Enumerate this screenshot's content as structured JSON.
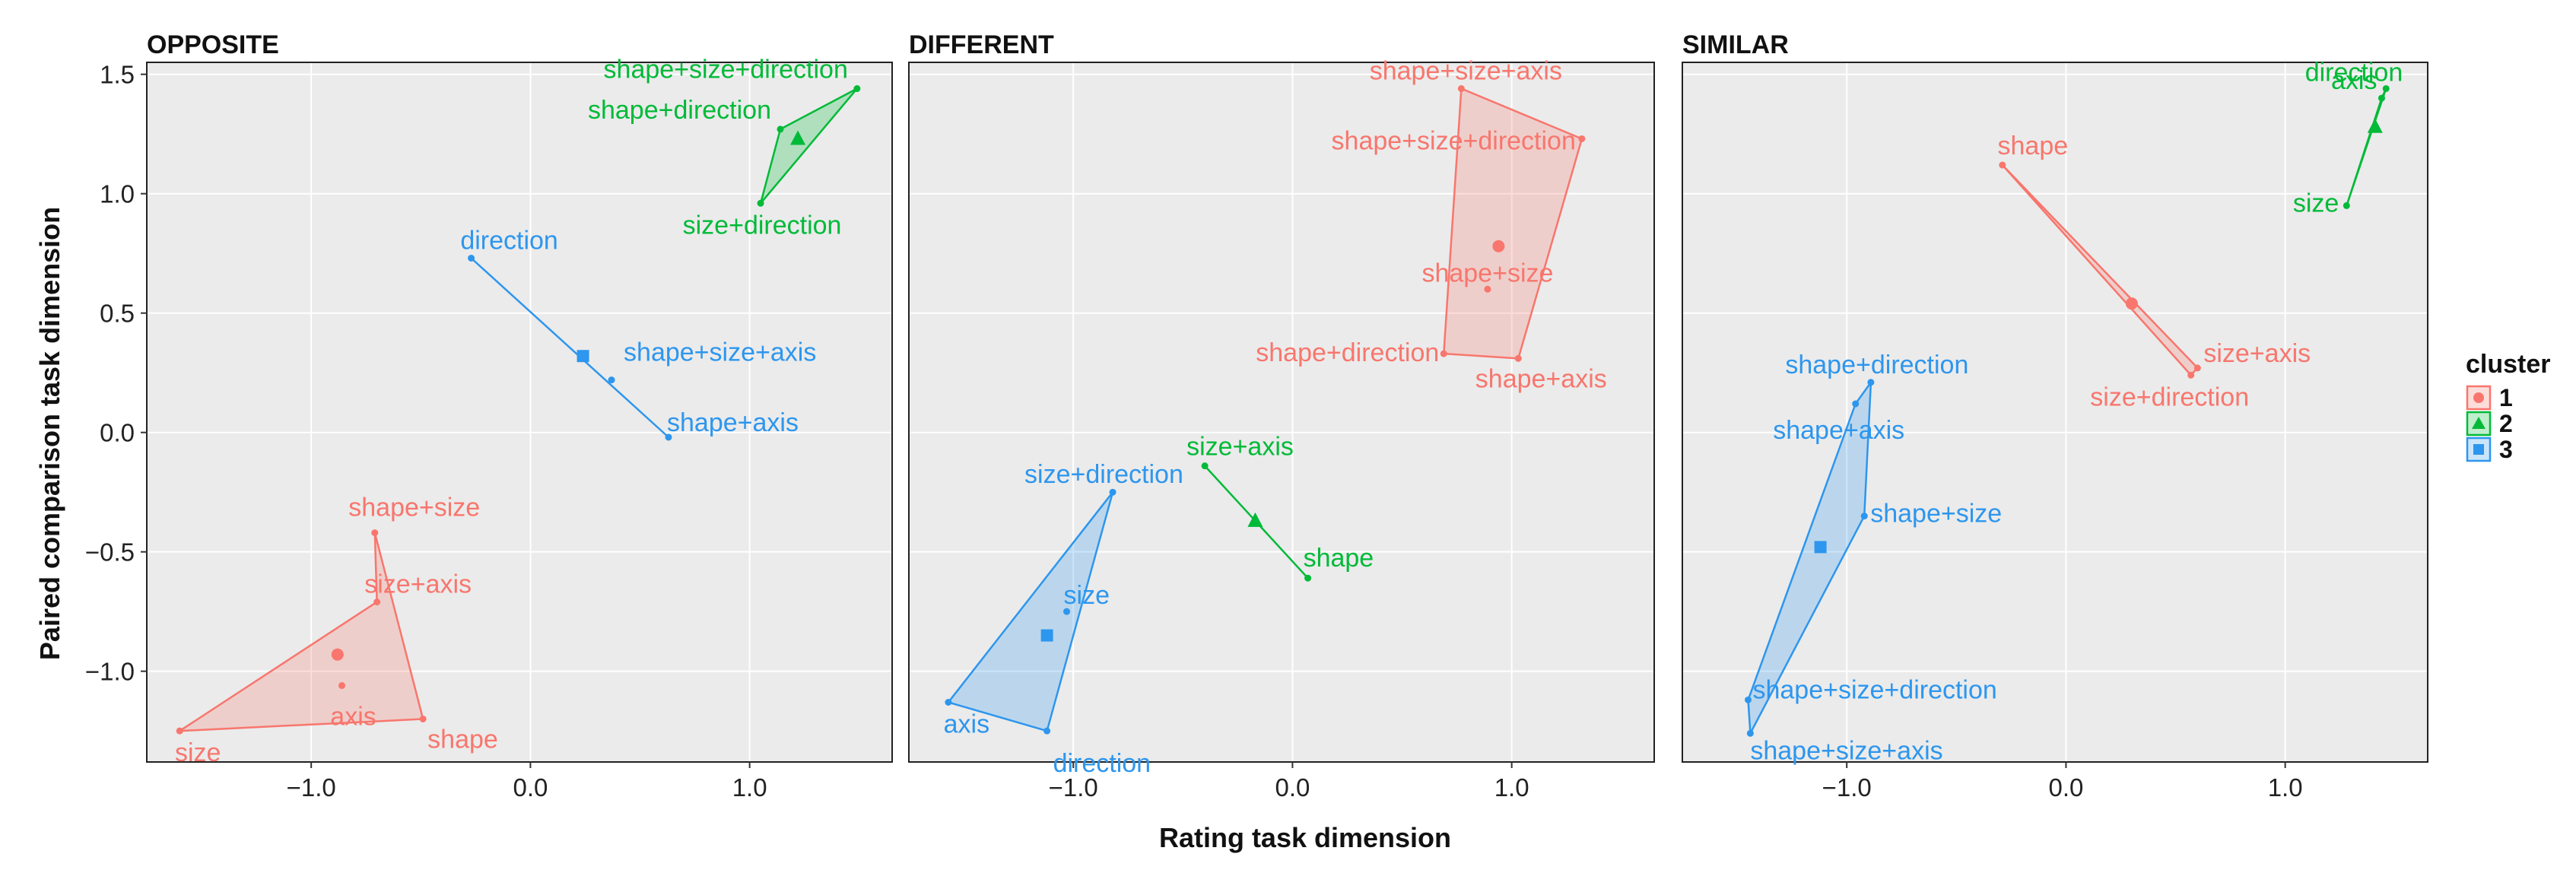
{
  "chart_data": {
    "type": "scatter",
    "xlabel": "Rating task dimension",
    "ylabel": "Paired comparison task dimension",
    "xlim": [
      -1.75,
      1.65
    ],
    "ylim": [
      -1.38,
      1.55
    ],
    "xticks": [
      -1.0,
      0.0,
      1.0
    ],
    "xtick_labels": [
      "−1.0",
      "0.0",
      "1.0"
    ],
    "yticks": [
      -1.0,
      -0.5,
      0.0,
      0.5,
      1.0,
      1.5
    ],
    "ytick_labels": [
      "−1.0",
      "−0.5",
      "0.0",
      "0.5",
      "1.0",
      "1.5"
    ],
    "legend": {
      "title": "cluster",
      "position": "right",
      "entries": [
        {
          "label": "1",
          "color": "#F8766D",
          "shape": "circle"
        },
        {
          "label": "2",
          "color": "#00BA38",
          "shape": "triangle"
        },
        {
          "label": "3",
          "color": "#2D96EE",
          "shape": "square"
        }
      ]
    },
    "panels": [
      {
        "title": "OPPOSITE",
        "clusters": [
          {
            "cluster": "1",
            "centroid": [
              -0.88,
              -0.93
            ],
            "hull": [
              0,
              1,
              2,
              3
            ],
            "points": [
              {
                "label": "shape+size",
                "x": -0.71,
                "y": -0.42
              },
              {
                "label": "shape",
                "x": -0.49,
                "y": -1.2
              },
              {
                "label": "size",
                "x": -1.6,
                "y": -1.25
              },
              {
                "label": "size+axis",
                "x": -0.7,
                "y": -0.71
              },
              {
                "label": "axis",
                "x": -0.86,
                "y": -1.06
              }
            ]
          },
          {
            "cluster": "2",
            "centroid": [
              1.22,
              1.23
            ],
            "hull": [
              0,
              1,
              2
            ],
            "points": [
              {
                "label": "shape+size+direction",
                "x": 1.49,
                "y": 1.44
              },
              {
                "label": "shape+direction",
                "x": 1.14,
                "y": 1.27
              },
              {
                "label": "size+direction",
                "x": 1.05,
                "y": 0.96
              }
            ]
          },
          {
            "cluster": "3",
            "centroid": [
              0.24,
              0.32
            ],
            "hull": [
              0,
              1
            ],
            "points": [
              {
                "label": "direction",
                "x": -0.27,
                "y": 0.73
              },
              {
                "label": "shape+axis",
                "x": 0.63,
                "y": -0.02
              },
              {
                "label": "shape+size+axis",
                "x": 0.37,
                "y": 0.22
              }
            ]
          }
        ]
      },
      {
        "title": "DIFFERENT",
        "clusters": [
          {
            "cluster": "1",
            "centroid": [
              0.94,
              0.78
            ],
            "hull": [
              0,
              1,
              2,
              3
            ],
            "points": [
              {
                "label": "shape+size+axis",
                "x": 0.77,
                "y": 1.44
              },
              {
                "label": "shape+size+direction",
                "x": 1.32,
                "y": 1.23
              },
              {
                "label": "shape+axis",
                "x": 1.03,
                "y": 0.31
              },
              {
                "label": "shape+direction",
                "x": 0.69,
                "y": 0.33
              },
              {
                "label": "shape+size",
                "x": 0.89,
                "y": 0.6
              }
            ]
          },
          {
            "cluster": "2",
            "centroid": [
              -0.17,
              -0.37
            ],
            "hull": [
              0,
              1
            ],
            "points": [
              {
                "label": "size+axis",
                "x": -0.4,
                "y": -0.14
              },
              {
                "label": "shape",
                "x": 0.07,
                "y": -0.61
              }
            ]
          },
          {
            "cluster": "3",
            "centroid": [
              -1.12,
              -0.85
            ],
            "hull": [
              0,
              1,
              2
            ],
            "points": [
              {
                "label": "size+direction",
                "x": -0.82,
                "y": -0.25
              },
              {
                "label": "direction",
                "x": -1.12,
                "y": -1.25
              },
              {
                "label": "axis",
                "x": -1.57,
                "y": -1.13
              },
              {
                "label": "size",
                "x": -1.03,
                "y": -0.75
              }
            ]
          }
        ]
      },
      {
        "title": "SIMILAR",
        "clusters": [
          {
            "cluster": "1",
            "centroid": [
              0.3,
              0.54
            ],
            "hull": [
              0,
              1,
              2
            ],
            "points": [
              {
                "label": "shape",
                "x": -0.29,
                "y": 1.12
              },
              {
                "label": "size+axis",
                "x": 0.6,
                "y": 0.27
              },
              {
                "label": "size+direction",
                "x": 0.57,
                "y": 0.24
              }
            ]
          },
          {
            "cluster": "2",
            "centroid": [
              1.41,
              1.28
            ],
            "hull": [
              0,
              1,
              2
            ],
            "points": [
              {
                "label": "direction",
                "x": 1.46,
                "y": 1.44
              },
              {
                "label": "axis",
                "x": 1.44,
                "y": 1.4
              },
              {
                "label": "size",
                "x": 1.28,
                "y": 0.95
              }
            ]
          },
          {
            "cluster": "3",
            "centroid": [
              -1.12,
              -0.48
            ],
            "hull": [
              0,
              1,
              2,
              3,
              4
            ],
            "points": [
              {
                "label": "shape+direction",
                "x": -0.89,
                "y": 0.21
              },
              {
                "label": "shape+size",
                "x": -0.92,
                "y": -0.35
              },
              {
                "label": "shape+size+axis",
                "x": -1.44,
                "y": -1.26
              },
              {
                "label": "shape+size+direction",
                "x": -1.45,
                "y": -1.12
              },
              {
                "label": "shape+axis",
                "x": -0.96,
                "y": 0.12
              }
            ]
          }
        ]
      }
    ]
  }
}
